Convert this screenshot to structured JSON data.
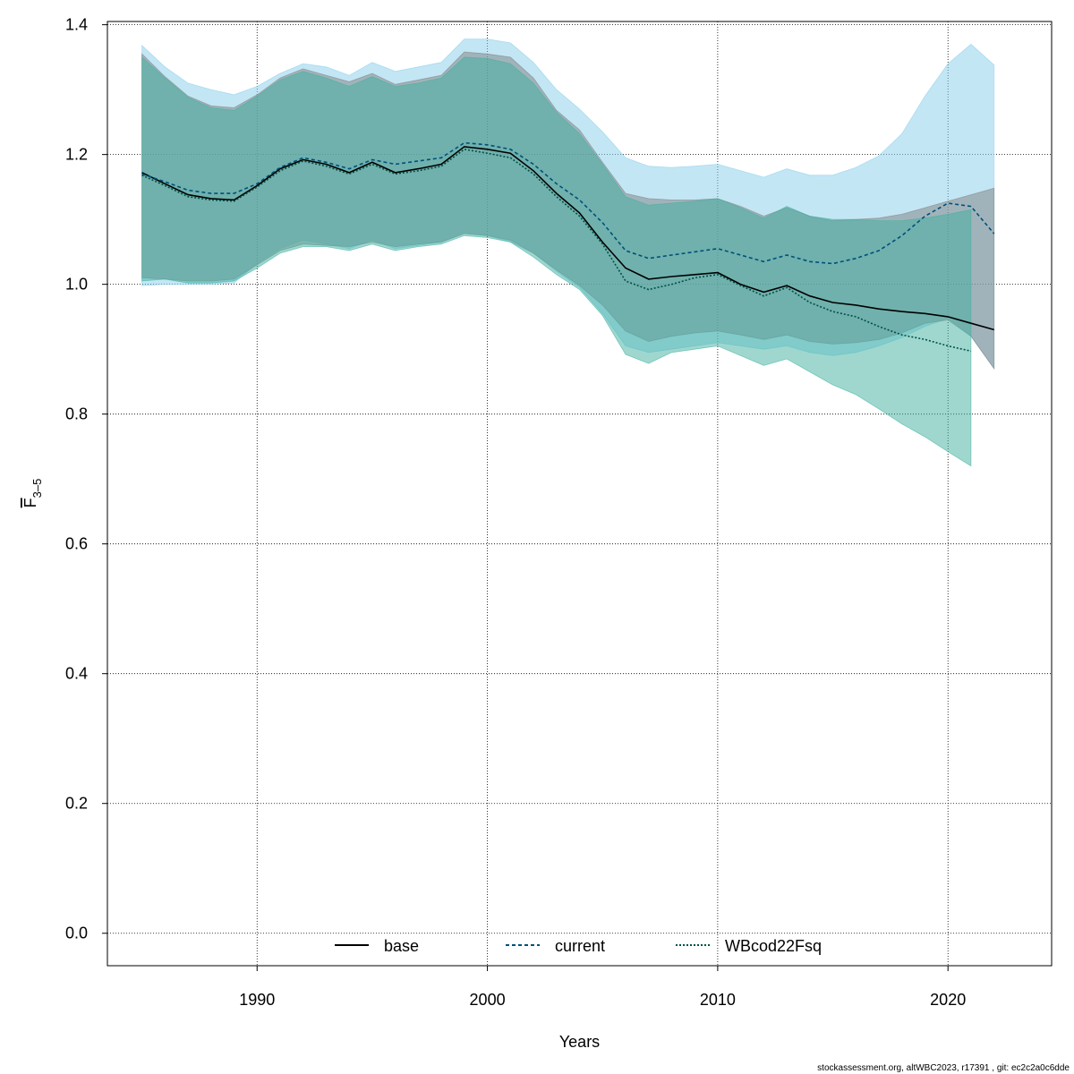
{
  "chart_data": {
    "type": "line",
    "title": "",
    "xlabel": "Years",
    "ylabel_main": "F",
    "ylabel_sub": "3–5",
    "xlim": [
      1983.5,
      2024.5
    ],
    "ylim": [
      -0.05,
      1.405
    ],
    "xticks": [
      1990,
      2000,
      2010,
      2020
    ],
    "yticks": [
      0.0,
      0.2,
      0.4,
      0.6,
      0.8,
      1.0,
      1.2,
      1.4
    ],
    "ytick_labels": [
      "0.0",
      "0.2",
      "0.4",
      "0.6",
      "0.8",
      "1.0",
      "1.2",
      "1.4"
    ],
    "grid": true,
    "legend_position": "bottom-center",
    "series": [
      {
        "name": "base",
        "line_color": "#000000",
        "band_color": "#808080",
        "dash": "solid",
        "x": [
          1985,
          1986,
          1987,
          1988,
          1989,
          1990,
          1991,
          1992,
          1993,
          1994,
          1995,
          1996,
          1997,
          1998,
          1999,
          2000,
          2001,
          2002,
          2003,
          2004,
          2005,
          2006,
          2007,
          2008,
          2009,
          2010,
          2011,
          2012,
          2013,
          2014,
          2015,
          2016,
          2017,
          2018,
          2019,
          2020,
          2021,
          2022
        ],
        "y": [
          1.172,
          1.155,
          1.138,
          1.132,
          1.13,
          1.152,
          1.178,
          1.192,
          1.185,
          1.172,
          1.188,
          1.172,
          1.178,
          1.185,
          1.212,
          1.208,
          1.202,
          1.175,
          1.14,
          1.11,
          1.065,
          1.025,
          1.008,
          1.012,
          1.015,
          1.018,
          1.0,
          0.988,
          0.998,
          0.982,
          0.972,
          0.968,
          0.962,
          0.958,
          0.955,
          0.95,
          0.94,
          0.93
        ],
        "lower": [
          1.01,
          1.008,
          1.005,
          1.005,
          1.008,
          1.03,
          1.052,
          1.062,
          1.06,
          1.058,
          1.065,
          1.058,
          1.062,
          1.065,
          1.078,
          1.075,
          1.068,
          1.048,
          1.022,
          0.998,
          0.968,
          0.928,
          0.912,
          0.92,
          0.925,
          0.928,
          0.922,
          0.915,
          0.922,
          0.912,
          0.908,
          0.91,
          0.915,
          0.925,
          0.94,
          0.945,
          0.92,
          0.87
        ],
        "upper": [
          1.355,
          1.32,
          1.29,
          1.275,
          1.272,
          1.292,
          1.318,
          1.332,
          1.322,
          1.312,
          1.325,
          1.308,
          1.315,
          1.322,
          1.358,
          1.355,
          1.35,
          1.318,
          1.268,
          1.238,
          1.188,
          1.14,
          1.132,
          1.13,
          1.13,
          1.132,
          1.12,
          1.105,
          1.118,
          1.105,
          1.098,
          1.1,
          1.102,
          1.108,
          1.118,
          1.128,
          1.138,
          1.148
        ]
      },
      {
        "name": "current",
        "line_color": "#00507a",
        "band_color": "#87ceeb",
        "dash": "dashed",
        "x": [
          1985,
          1986,
          1987,
          1988,
          1989,
          1990,
          1991,
          1992,
          1993,
          1994,
          1995,
          1996,
          1997,
          1998,
          1999,
          2000,
          2001,
          2002,
          2003,
          2004,
          2005,
          2006,
          2007,
          2008,
          2009,
          2010,
          2011,
          2012,
          2013,
          2014,
          2015,
          2016,
          2017,
          2018,
          2019,
          2020,
          2021,
          2022
        ],
        "y": [
          1.17,
          1.158,
          1.145,
          1.14,
          1.14,
          1.155,
          1.18,
          1.195,
          1.188,
          1.178,
          1.192,
          1.185,
          1.19,
          1.195,
          1.218,
          1.215,
          1.208,
          1.185,
          1.155,
          1.13,
          1.095,
          1.052,
          1.04,
          1.045,
          1.05,
          1.055,
          1.045,
          1.035,
          1.045,
          1.035,
          1.032,
          1.04,
          1.052,
          1.075,
          1.105,
          1.125,
          1.12,
          1.078
        ],
        "lower": [
          0.998,
          1.0,
          1.0,
          1.0,
          1.002,
          1.032,
          1.055,
          1.068,
          1.062,
          1.055,
          1.068,
          1.055,
          1.06,
          1.065,
          1.08,
          1.075,
          1.065,
          1.048,
          1.02,
          0.995,
          0.955,
          0.905,
          0.895,
          0.9,
          0.905,
          0.91,
          0.905,
          0.9,
          0.905,
          0.895,
          0.89,
          0.895,
          0.905,
          0.918,
          0.935,
          0.948,
          0.92,
          0.87
        ],
        "upper": [
          1.368,
          1.335,
          1.31,
          1.3,
          1.292,
          1.305,
          1.325,
          1.34,
          1.335,
          1.322,
          1.342,
          1.328,
          1.335,
          1.342,
          1.378,
          1.378,
          1.372,
          1.342,
          1.3,
          1.27,
          1.235,
          1.195,
          1.182,
          1.18,
          1.182,
          1.185,
          1.175,
          1.165,
          1.178,
          1.168,
          1.168,
          1.18,
          1.198,
          1.232,
          1.29,
          1.34,
          1.37,
          1.338
        ]
      },
      {
        "name": "WBcod22Fsq",
        "line_color": "#005045",
        "band_color": "#40b0a0",
        "dash": "dotted",
        "x": [
          1985,
          1986,
          1987,
          1988,
          1989,
          1990,
          1991,
          1992,
          1993,
          1994,
          1995,
          1996,
          1997,
          1998,
          1999,
          2000,
          2001,
          2002,
          2003,
          2004,
          2005,
          2006,
          2007,
          2008,
          2009,
          2010,
          2011,
          2012,
          2013,
          2014,
          2015,
          2016,
          2017,
          2018,
          2019,
          2020,
          2021
        ],
        "y": [
          1.168,
          1.152,
          1.135,
          1.13,
          1.128,
          1.15,
          1.175,
          1.19,
          1.182,
          1.17,
          1.185,
          1.17,
          1.175,
          1.182,
          1.208,
          1.202,
          1.195,
          1.17,
          1.135,
          1.105,
          1.062,
          1.005,
          0.992,
          1.0,
          1.01,
          1.015,
          0.998,
          0.982,
          0.995,
          0.972,
          0.958,
          0.95,
          0.935,
          0.922,
          0.915,
          0.905,
          0.897
        ],
        "lower": [
          1.005,
          1.008,
          1.002,
          1.002,
          1.005,
          1.025,
          1.048,
          1.058,
          1.058,
          1.052,
          1.062,
          1.052,
          1.058,
          1.062,
          1.075,
          1.072,
          1.065,
          1.042,
          1.015,
          0.992,
          0.952,
          0.892,
          0.878,
          0.895,
          0.9,
          0.905,
          0.89,
          0.875,
          0.885,
          0.865,
          0.845,
          0.83,
          0.808,
          0.785,
          0.765,
          0.742,
          0.72
        ],
        "upper": [
          1.35,
          1.318,
          1.288,
          1.272,
          1.268,
          1.29,
          1.315,
          1.328,
          1.318,
          1.305,
          1.32,
          1.305,
          1.31,
          1.318,
          1.35,
          1.348,
          1.34,
          1.31,
          1.265,
          1.232,
          1.185,
          1.135,
          1.122,
          1.125,
          1.128,
          1.132,
          1.118,
          1.102,
          1.12,
          1.105,
          1.1,
          1.1,
          1.098,
          1.098,
          1.102,
          1.108,
          1.115
        ]
      }
    ]
  },
  "footer": {
    "text": "stockassessment.org, altWBC2023, r17391 , git: ec2c2a0c6dde"
  }
}
